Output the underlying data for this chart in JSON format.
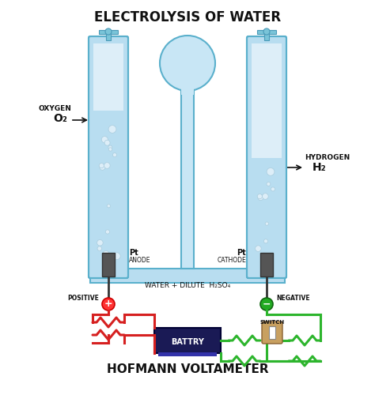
{
  "title": "ELECTROLYSIS OF WATER",
  "subtitle": "HOFMANN VOLTAMETER",
  "bg_color": "#ffffff",
  "tube_color": "#a8d8ea",
  "tube_edge_color": "#6db8d4",
  "water_color": "#c8e6f5",
  "electrode_color": "#4a4a4a",
  "bubble_color": "#ffffff",
  "left_label_top": "OXYGEN",
  "left_formula": "O₂",
  "right_label_top": "HYDROGEN",
  "right_formula": "H₂",
  "anode_label": "Pt\nANODE",
  "cathode_label": "Pt\nCATHODE",
  "center_label": "WATER + DILUTE  H₂SO₄",
  "pos_label": "POSITIVE",
  "neg_label": "NEGATIVE",
  "battery_label": "BATTRY",
  "switch_label": "SWITCH",
  "wire_red": "#d62020",
  "wire_green": "#2db52d",
  "battery_body": "#222266",
  "battery_top": "#333388",
  "switch_body": "#c8a060"
}
